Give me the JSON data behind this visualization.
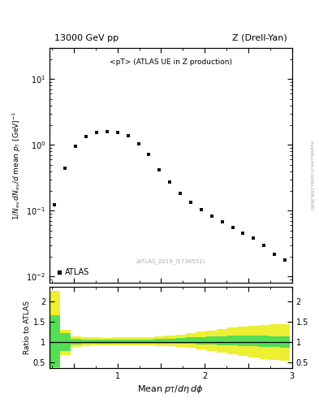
{
  "title_left": "13000 GeV pp",
  "title_right": "Z (Drell-Yan)",
  "annotation": "<pT> (ATLAS UE in Z production)",
  "ref_label": "(ATLAS_2019_I1736531)",
  "ylabel_main": "1/N_{ev} dN_{ev}/d mean p_{T} [GeV]",
  "ylabel_ratio": "Ratio to ATLAS",
  "xlabel": "Mean p_{T}/dη dϕ",
  "right_label": "mcplots.cern.ch [arXiv:1306.3436]",
  "data_x": [
    0.28,
    0.4,
    0.52,
    0.64,
    0.76,
    0.88,
    1.0,
    1.12,
    1.24,
    1.36,
    1.48,
    1.6,
    1.72,
    1.84,
    1.96,
    2.08,
    2.2,
    2.32,
    2.44,
    2.56,
    2.68,
    2.8,
    2.92
  ],
  "data_y": [
    0.125,
    0.45,
    0.95,
    1.35,
    1.55,
    1.6,
    1.55,
    1.4,
    1.05,
    0.72,
    0.42,
    0.27,
    0.185,
    0.135,
    0.105,
    0.082,
    0.067,
    0.055,
    0.045,
    0.038,
    0.03,
    0.022,
    0.018
  ],
  "ratio_x_edges": [
    0.22,
    0.34,
    0.46,
    0.58,
    0.7,
    0.82,
    0.94,
    1.06,
    1.18,
    1.3,
    1.42,
    1.54,
    1.66,
    1.78,
    1.9,
    2.02,
    2.14,
    2.26,
    2.38,
    2.5,
    2.62,
    2.74,
    2.86,
    2.98
  ],
  "ratio_green_lo": [
    0.38,
    0.78,
    0.93,
    0.96,
    0.96,
    0.96,
    0.96,
    0.96,
    0.96,
    0.96,
    0.96,
    0.96,
    0.96,
    0.95,
    0.94,
    0.93,
    0.92,
    0.91,
    0.9,
    0.89,
    0.88,
    0.87,
    0.86
  ],
  "ratio_green_hi": [
    1.65,
    1.22,
    1.08,
    1.06,
    1.05,
    1.05,
    1.06,
    1.06,
    1.06,
    1.06,
    1.07,
    1.08,
    1.1,
    1.11,
    1.12,
    1.13,
    1.14,
    1.15,
    1.16,
    1.16,
    1.15,
    1.14,
    1.13
  ],
  "ratio_yellow_lo": [
    0.36,
    0.68,
    0.87,
    0.9,
    0.91,
    0.91,
    0.91,
    0.91,
    0.91,
    0.91,
    0.9,
    0.89,
    0.87,
    0.85,
    0.82,
    0.78,
    0.74,
    0.7,
    0.66,
    0.62,
    0.58,
    0.56,
    0.54
  ],
  "ratio_yellow_hi": [
    2.25,
    1.3,
    1.14,
    1.12,
    1.11,
    1.1,
    1.11,
    1.11,
    1.12,
    1.12,
    1.13,
    1.15,
    1.18,
    1.22,
    1.25,
    1.28,
    1.32,
    1.35,
    1.38,
    1.4,
    1.42,
    1.43,
    1.43
  ],
  "xlim": [
    0.22,
    3.0
  ],
  "ylim_main": [
    0.008,
    30
  ],
  "ylim_ratio": [
    0.35,
    2.35
  ],
  "color_data": "#111111",
  "color_green": "#55dd55",
  "color_yellow": "#eeee33",
  "bg_color": "#ffffff"
}
